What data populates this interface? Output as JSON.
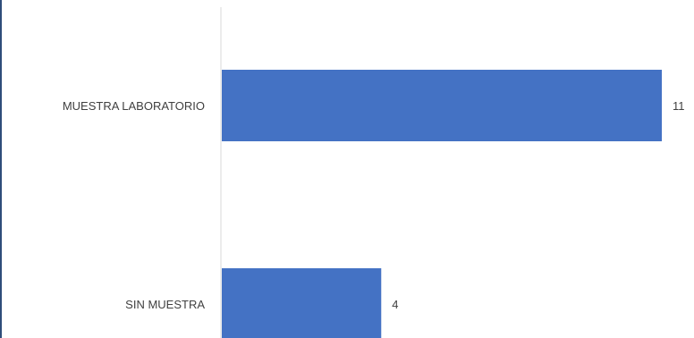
{
  "chart_data": {
    "type": "bar",
    "orientation": "horizontal",
    "categories": [
      "MUESTRA LABORATORIO",
      "SIN MUESTRA"
    ],
    "values": [
      11,
      4
    ],
    "data_labels": [
      "11",
      "4"
    ],
    "bar_color": "#4472c4",
    "axis_color": "#d9d9d9",
    "grid": false,
    "legend": "none",
    "xlim": [
      0,
      11
    ]
  }
}
